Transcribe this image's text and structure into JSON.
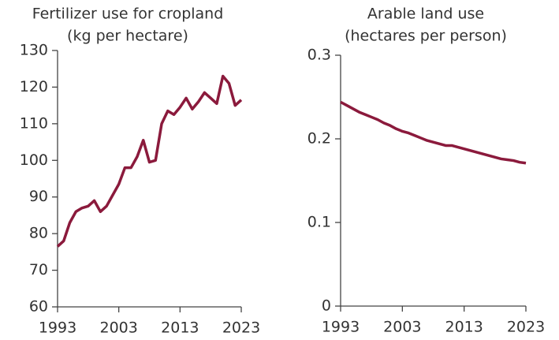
{
  "chart_data": [
    {
      "type": "line",
      "title": "Fertilizer use for cropland",
      "subtitle": "(kg per hectare)",
      "x": [
        1993,
        1994,
        1995,
        1996,
        1997,
        1998,
        1999,
        2000,
        2001,
        2002,
        2003,
        2004,
        2005,
        2006,
        2007,
        2008,
        2009,
        2010,
        2011,
        2012,
        2013,
        2014,
        2015,
        2016,
        2017,
        2018,
        2019,
        2020,
        2021,
        2022,
        2023
      ],
      "series": [
        {
          "color": "#8b1a3c",
          "values": [
            76.5,
            78,
            83,
            86,
            87,
            87.5,
            89,
            86,
            87.5,
            90.5,
            93.5,
            98,
            98,
            101,
            105.5,
            99.5,
            100,
            110,
            113.5,
            112.5,
            114.5,
            117,
            114,
            116,
            118.5,
            117,
            115.5,
            123,
            121,
            115,
            116.5
          ]
        }
      ],
      "xlim": [
        1993,
        2023
      ],
      "xticks": [
        1993,
        2003,
        2013,
        2023
      ],
      "ylim": [
        60,
        130
      ],
      "yticks": [
        60,
        70,
        80,
        90,
        100,
        110,
        120,
        130
      ]
    },
    {
      "type": "line",
      "title": "Arable land use",
      "subtitle": "(hectares per person)",
      "x": [
        1993,
        1994,
        1995,
        1996,
        1997,
        1998,
        1999,
        2000,
        2001,
        2002,
        2003,
        2004,
        2005,
        2006,
        2007,
        2008,
        2009,
        2010,
        2011,
        2012,
        2013,
        2014,
        2015,
        2016,
        2017,
        2018,
        2019,
        2020,
        2021,
        2022,
        2023
      ],
      "series": [
        {
          "color": "#8b1a3c",
          "values": [
            0.244,
            0.24,
            0.236,
            0.232,
            0.229,
            0.226,
            0.223,
            0.219,
            0.216,
            0.212,
            0.209,
            0.207,
            0.204,
            0.201,
            0.198,
            0.196,
            0.194,
            0.192,
            0.192,
            0.19,
            0.188,
            0.186,
            0.184,
            0.182,
            0.18,
            0.178,
            0.176,
            0.175,
            0.174,
            0.172,
            0.171
          ]
        }
      ],
      "xlim": [
        1993,
        2023
      ],
      "xticks": [
        1993,
        2003,
        2013,
        2023
      ],
      "ylim": [
        0,
        0.3
      ],
      "yticks": [
        0,
        0.1,
        0.2,
        0.3
      ]
    }
  ]
}
